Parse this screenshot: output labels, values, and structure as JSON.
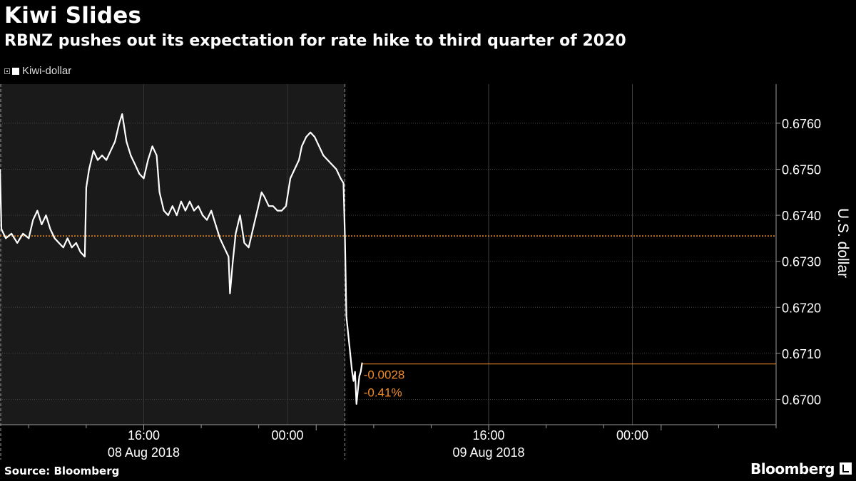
{
  "chart_data": {
    "type": "line",
    "title": "Kiwi Slides",
    "subtitle": "RBNZ pushes out its expectation for rate hike to third quarter of 2020",
    "ylabel": "U.S. dollar",
    "ylim": [
      0.66945,
      0.67685
    ],
    "yticks": [
      0.67,
      0.671,
      0.672,
      0.673,
      0.674,
      0.675,
      0.676
    ],
    "ytick_labels": [
      "0.6700",
      "0.6710",
      "0.6720",
      "0.6730",
      "0.6740",
      "0.6750",
      "0.6760"
    ],
    "xlim": [
      0,
      54
    ],
    "x_unit": "hours from 08 Aug 2018 06:00",
    "xticks": [
      10,
      34,
      44
    ],
    "xtick_labels": [
      "16:00",
      "00:00",
      "16:00",
      "00:00"
    ],
    "xtick_label_positions": [
      10,
      20,
      34,
      44
    ],
    "date_labels": [
      {
        "x": 10,
        "text": "08 Aug 2018"
      },
      {
        "x": 34,
        "text": "09 Aug 2018"
      }
    ],
    "shaded_region": [
      0,
      24
    ],
    "reference_value": 0.67355,
    "last_value": 0.67077,
    "change_value": "-0.0028",
    "change_pct": "-0.41%",
    "legend": [
      {
        "name": "Kiwi-dollar",
        "color": "#ffffff"
      }
    ],
    "series": [
      {
        "name": "Kiwi-dollar",
        "color": "#ffffff",
        "points": [
          [
            0.0,
            0.675
          ],
          [
            0.1,
            0.6737
          ],
          [
            0.4,
            0.6735
          ],
          [
            0.8,
            0.6736
          ],
          [
            1.2,
            0.6734
          ],
          [
            1.6,
            0.6736
          ],
          [
            2.0,
            0.6735
          ],
          [
            2.3,
            0.6739
          ],
          [
            2.6,
            0.6741
          ],
          [
            2.9,
            0.6738
          ],
          [
            3.2,
            0.674
          ],
          [
            3.5,
            0.6737
          ],
          [
            3.8,
            0.6735
          ],
          [
            4.1,
            0.6734
          ],
          [
            4.4,
            0.6733
          ],
          [
            4.7,
            0.6735
          ],
          [
            5.0,
            0.6733
          ],
          [
            5.3,
            0.6734
          ],
          [
            5.6,
            0.6732
          ],
          [
            5.9,
            0.6731
          ],
          [
            6.0,
            0.6746
          ],
          [
            6.2,
            0.675
          ],
          [
            6.5,
            0.6754
          ],
          [
            6.8,
            0.6752
          ],
          [
            7.1,
            0.6753
          ],
          [
            7.4,
            0.6752
          ],
          [
            7.7,
            0.6754
          ],
          [
            8.0,
            0.6756
          ],
          [
            8.3,
            0.676
          ],
          [
            8.5,
            0.6762
          ],
          [
            8.8,
            0.6756
          ],
          [
            9.1,
            0.6753
          ],
          [
            9.4,
            0.6751
          ],
          [
            9.7,
            0.6749
          ],
          [
            10.0,
            0.6748
          ],
          [
            10.3,
            0.6752
          ],
          [
            10.6,
            0.6755
          ],
          [
            10.9,
            0.6753
          ],
          [
            11.1,
            0.6745
          ],
          [
            11.4,
            0.6741
          ],
          [
            11.7,
            0.674
          ],
          [
            12.0,
            0.6742
          ],
          [
            12.3,
            0.674
          ],
          [
            12.6,
            0.6743
          ],
          [
            12.9,
            0.6741
          ],
          [
            13.2,
            0.6743
          ],
          [
            13.5,
            0.6741
          ],
          [
            13.8,
            0.6742
          ],
          [
            14.1,
            0.674
          ],
          [
            14.4,
            0.6739
          ],
          [
            14.7,
            0.6741
          ],
          [
            15.0,
            0.6738
          ],
          [
            15.3,
            0.6735
          ],
          [
            15.6,
            0.6733
          ],
          [
            15.9,
            0.6731
          ],
          [
            16.0,
            0.6723
          ],
          [
            16.2,
            0.673
          ],
          [
            16.4,
            0.6736
          ],
          [
            16.7,
            0.674
          ],
          [
            17.0,
            0.6734
          ],
          [
            17.3,
            0.6733
          ],
          [
            17.6,
            0.6737
          ],
          [
            17.9,
            0.6741
          ],
          [
            18.2,
            0.6745
          ],
          [
            18.4,
            0.6744
          ],
          [
            18.7,
            0.6742
          ],
          [
            19.0,
            0.6742
          ],
          [
            19.3,
            0.6741
          ],
          [
            19.6,
            0.6741
          ],
          [
            19.9,
            0.6742
          ],
          [
            20.2,
            0.6748
          ],
          [
            20.5,
            0.675
          ],
          [
            20.8,
            0.6752
          ],
          [
            21.0,
            0.6755
          ],
          [
            21.3,
            0.6757
          ],
          [
            21.6,
            0.6758
          ],
          [
            21.9,
            0.6757
          ],
          [
            22.2,
            0.6755
          ],
          [
            22.5,
            0.6753
          ],
          [
            22.8,
            0.6752
          ],
          [
            23.1,
            0.6751
          ],
          [
            23.4,
            0.675
          ],
          [
            23.7,
            0.6748
          ],
          [
            23.9,
            0.6747
          ],
          [
            24.0,
            0.6735
          ],
          [
            24.1,
            0.6718
          ],
          [
            24.3,
            0.6712
          ],
          [
            24.5,
            0.6706
          ],
          [
            24.6,
            0.6704
          ],
          [
            24.7,
            0.6706
          ],
          [
            24.8,
            0.6699
          ],
          [
            25.0,
            0.6705
          ],
          [
            25.1,
            0.6706
          ],
          [
            25.2,
            0.6708
          ]
        ]
      }
    ]
  },
  "footer": {
    "source": "Source: Bloomberg",
    "brand": "Bloomberg",
    "brand_icon": "bloomberg-terminal-icon"
  }
}
